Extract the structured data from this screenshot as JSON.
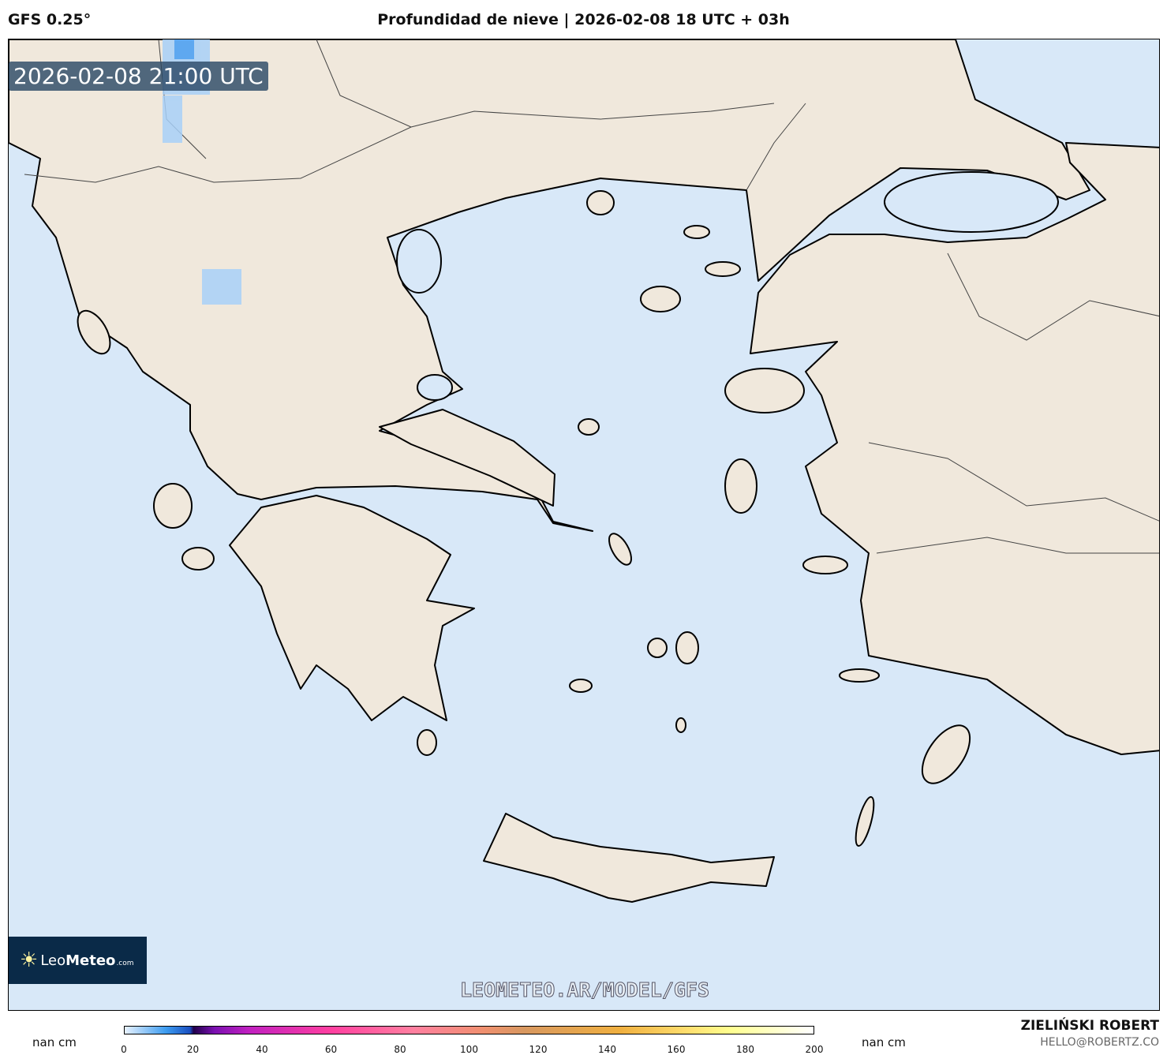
{
  "header": {
    "model": "GFS 0.25°",
    "title": "Profundidad de nieve | 2026-02-08 18 UTC + 03h"
  },
  "map": {
    "timestamp": "2026-02-08 21:00 UTC",
    "website": "LEOMETEO.AR/MODEL/GFS",
    "logo": {
      "part1": "Leo",
      "part2": "Meteo",
      ".com": ".com"
    },
    "colors": {
      "water": "#d8e8f8",
      "land": "#f0e8dc",
      "snow": "#a8d0f8"
    }
  },
  "colorbar": {
    "unit_left": "nan cm",
    "unit_right": "nan cm",
    "ticks": [
      "0",
      "20",
      "40",
      "60",
      "80",
      "100",
      "120",
      "140",
      "160",
      "180",
      "200"
    ],
    "range": [
      0,
      200
    ]
  },
  "credits": {
    "author": "ZIELIŃSKI ROBERT",
    "email": "HELLO@ROBERTZ.CO"
  }
}
